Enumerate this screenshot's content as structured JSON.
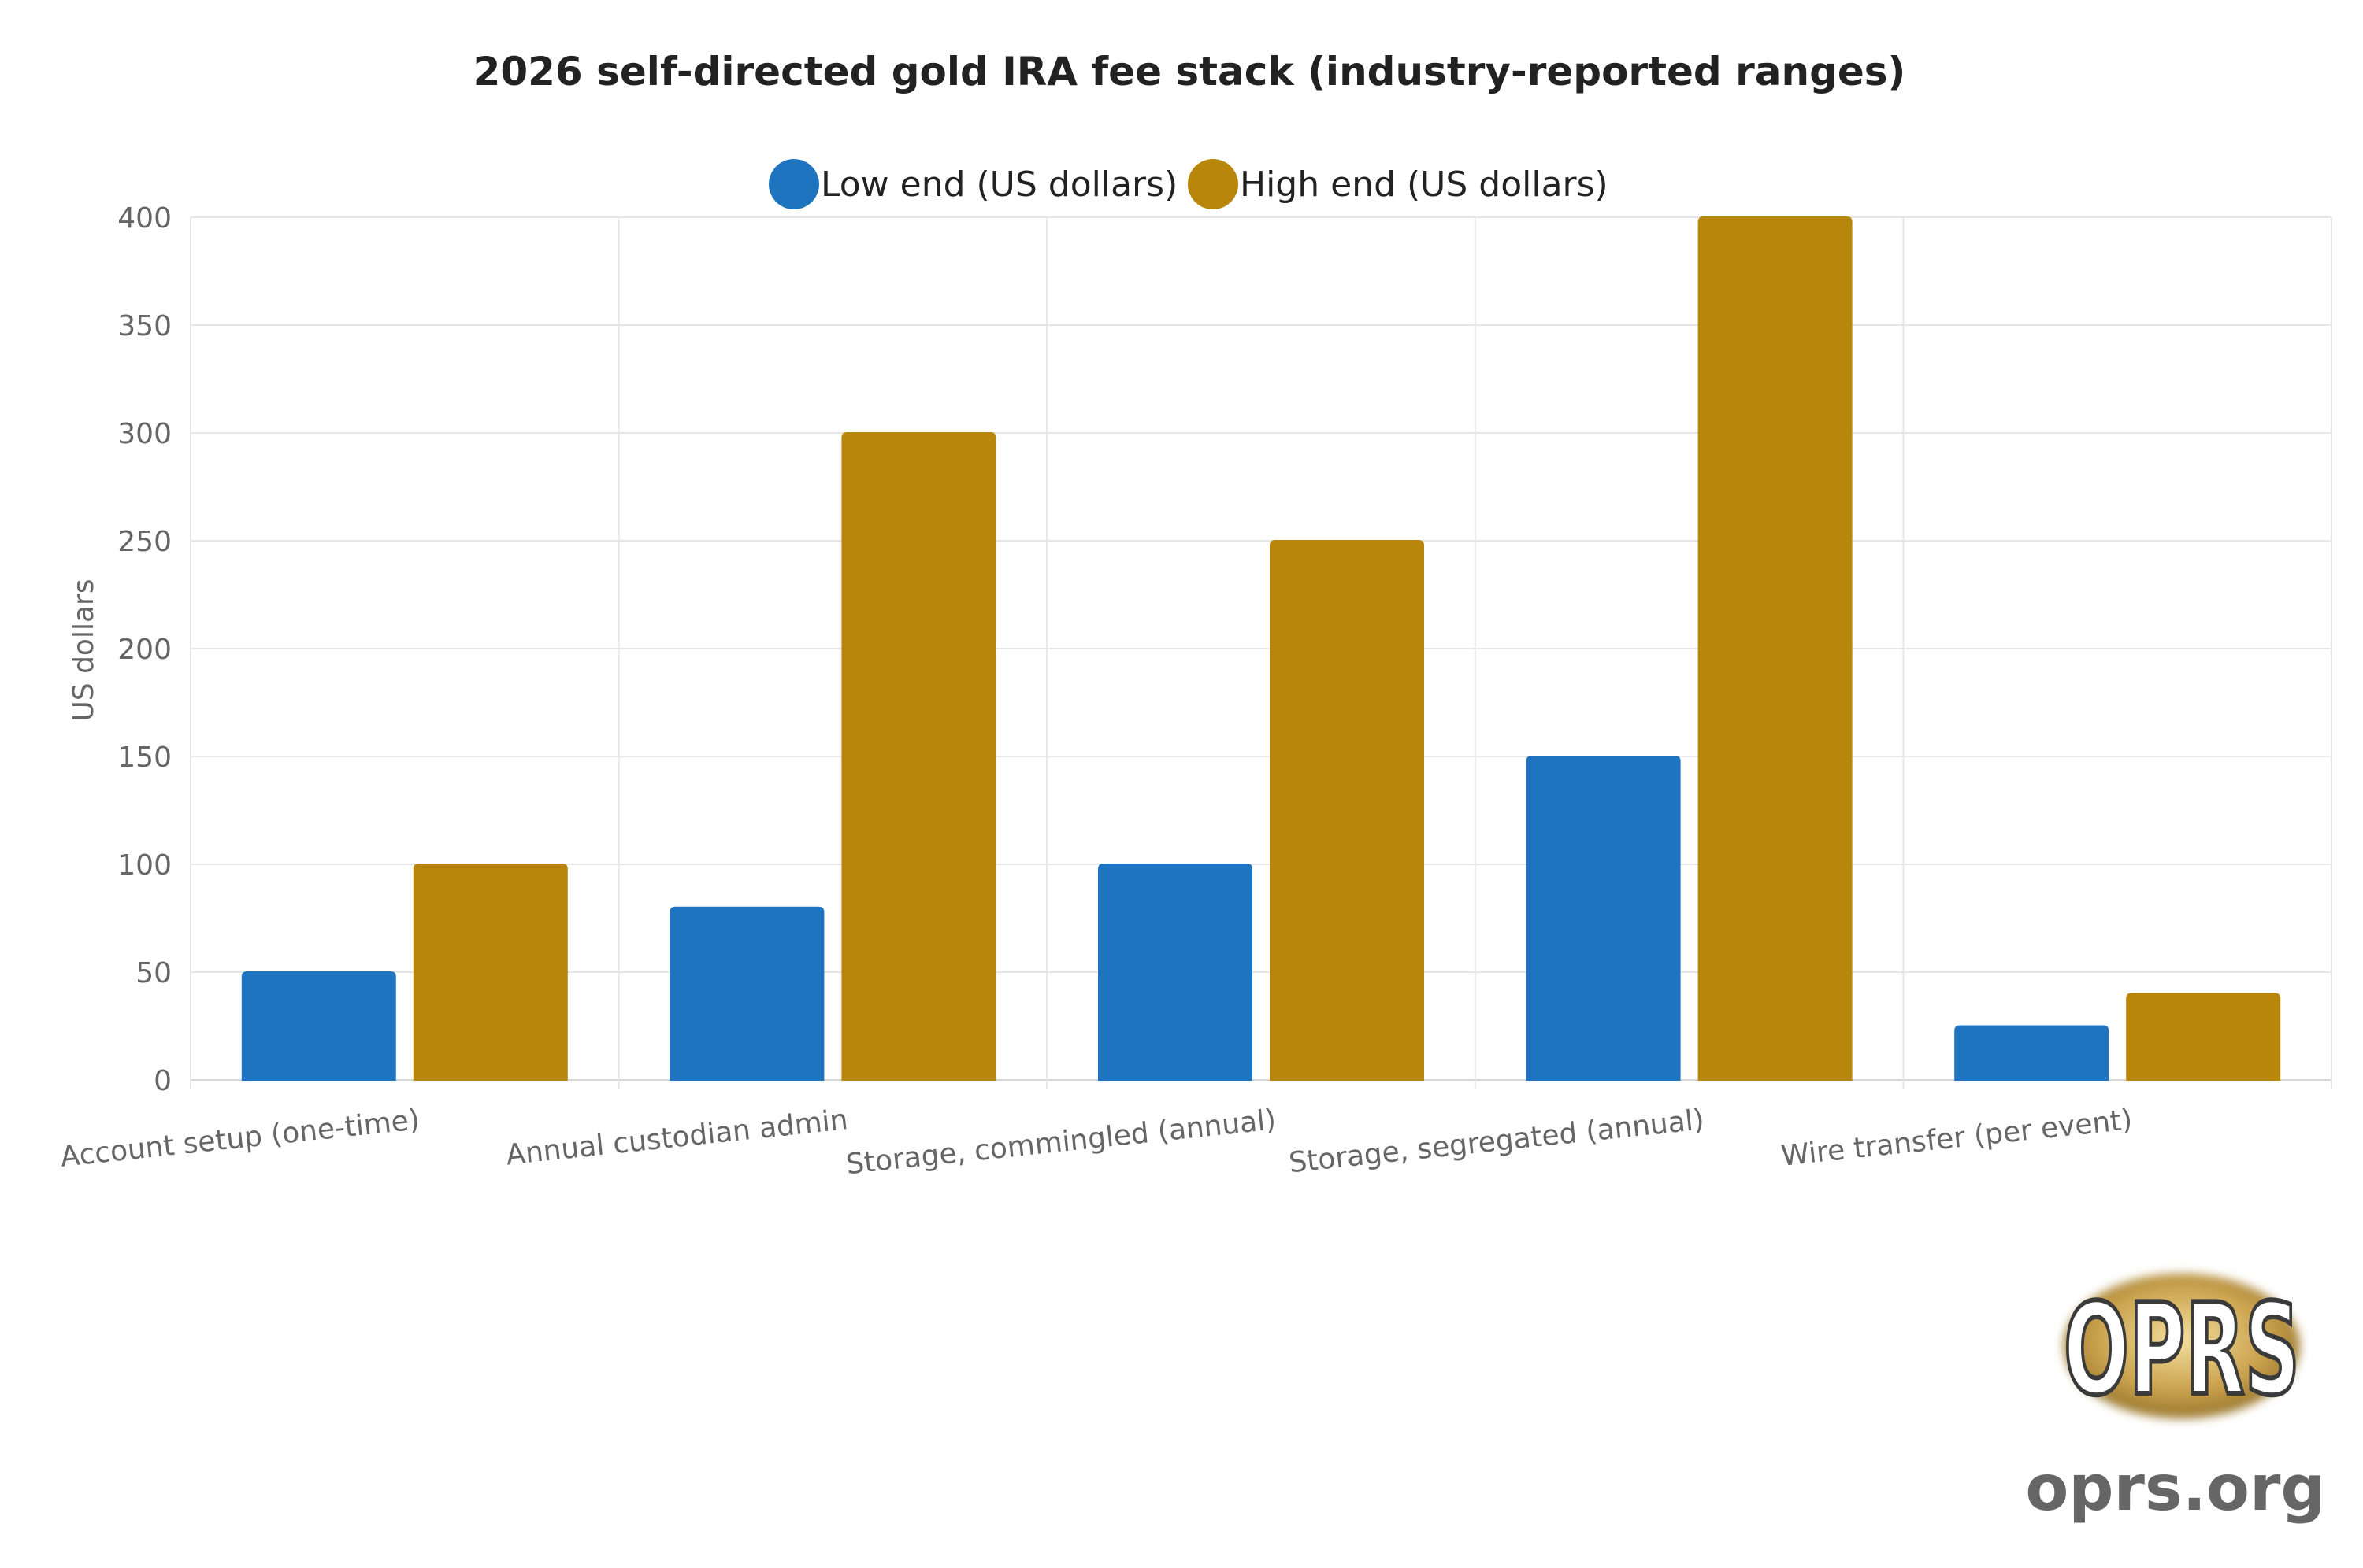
{
  "chart_data": {
    "type": "bar",
    "title": "2026 self-directed gold IRA fee stack (industry-reported ranges)",
    "ylabel": "US dollars",
    "xlabel": "",
    "ylim": [
      0,
      400
    ],
    "yticks": [
      0,
      50,
      100,
      150,
      200,
      250,
      300,
      350,
      400
    ],
    "categories": [
      "Account setup (one-time)",
      "Annual custodian admin",
      "Storage, commingled (annual)",
      "Storage, segregated (annual)",
      "Wire transfer (per event)"
    ],
    "series": [
      {
        "name": "Low end (US dollars)",
        "color": "#1f74c0",
        "values": [
          50,
          80,
          100,
          150,
          25
        ]
      },
      {
        "name": "High end (US dollars)",
        "color": "#b8860b",
        "values": [
          100,
          300,
          250,
          400,
          40
        ]
      }
    ],
    "grid": true,
    "legend_position": "top-center"
  },
  "watermark": {
    "logo_text": "OPRS",
    "site_text": "oprs.org"
  }
}
